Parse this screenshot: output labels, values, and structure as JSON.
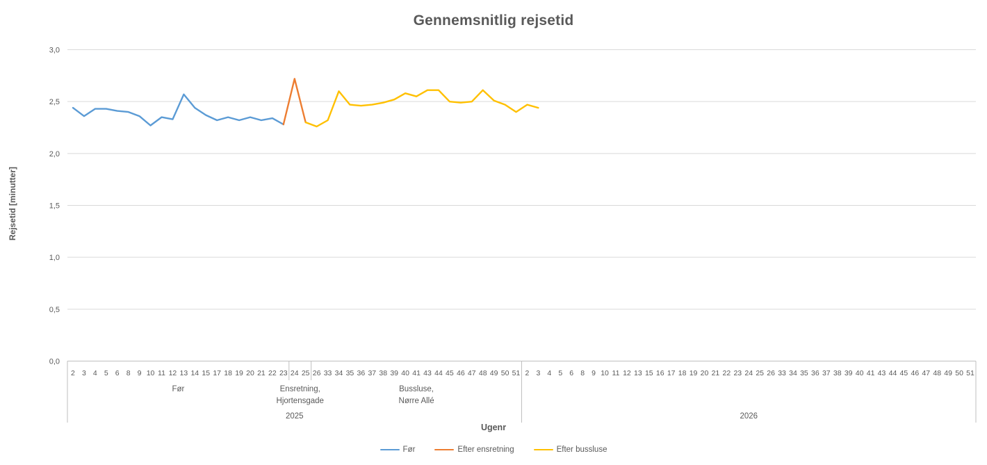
{
  "chart_data": {
    "type": "line",
    "title": "Gennemsnitlig rejsetid",
    "xlabel": "Ugenr",
    "ylabel": "Rejsetid [minutter]",
    "ylim": [
      0,
      3
    ],
    "ytick_step": 0.5,
    "ytick_labels": [
      "0,0",
      "0,5",
      "1,0",
      "1,5",
      "2,0",
      "2,5",
      "3,0"
    ],
    "grid": true,
    "legend_position": "bottom",
    "x_groups": [
      {
        "year": "2025",
        "weeks": [
          "2",
          "3",
          "4",
          "5",
          "6",
          "8",
          "9",
          "10",
          "11",
          "12",
          "13",
          "14",
          "15",
          "17",
          "18",
          "19",
          "20",
          "21",
          "22",
          "23",
          "24",
          "25",
          "26",
          "33",
          "34",
          "35",
          "36",
          "37",
          "38",
          "39",
          "40",
          "41",
          "43",
          "44",
          "45",
          "46",
          "47",
          "48",
          "49",
          "50",
          "51"
        ],
        "phases": [
          {
            "lines": [
              "Før"
            ],
            "from": 0,
            "to": 19
          },
          {
            "lines": [
              "Ensretning,",
              "Hjortensgade"
            ],
            "from": 20,
            "to": 21
          },
          {
            "lines": [
              "Bussluse,",
              "Nørre Allé"
            ],
            "from": 22,
            "to": 40
          }
        ]
      },
      {
        "year": "2026",
        "weeks": [
          "2",
          "3",
          "4",
          "5",
          "6",
          "8",
          "9",
          "10",
          "11",
          "12",
          "13",
          "15",
          "16",
          "17",
          "18",
          "19",
          "20",
          "21",
          "22",
          "23",
          "24",
          "25",
          "26",
          "33",
          "34",
          "35",
          "36",
          "37",
          "38",
          "39",
          "40",
          "41",
          "43",
          "44",
          "45",
          "46",
          "47",
          "48",
          "49",
          "50",
          "51"
        ],
        "phases": []
      }
    ],
    "series": [
      {
        "name": "Før",
        "color": "#5B9BD5",
        "start_index": 0,
        "values": [
          2.44,
          2.36,
          2.43,
          2.43,
          2.41,
          2.4,
          2.36,
          2.27,
          2.35,
          2.33,
          2.57,
          2.44,
          2.37,
          2.32,
          2.35,
          2.32,
          2.35,
          2.32,
          2.34,
          2.28
        ]
      },
      {
        "name": "Efter ensretning",
        "color": "#ED7D31",
        "start_index": 19,
        "values": [
          2.28,
          2.72,
          2.3
        ]
      },
      {
        "name": "Efter bussluse",
        "color": "#FFC000",
        "start_index": 21,
        "values": [
          2.3,
          2.26,
          2.32,
          2.6,
          2.47,
          2.46,
          2.47,
          2.49,
          2.52,
          2.58,
          2.55,
          2.61,
          2.61,
          2.5,
          2.49,
          2.5,
          2.61,
          2.51,
          2.47,
          2.4,
          2.47,
          2.44
        ]
      }
    ]
  }
}
